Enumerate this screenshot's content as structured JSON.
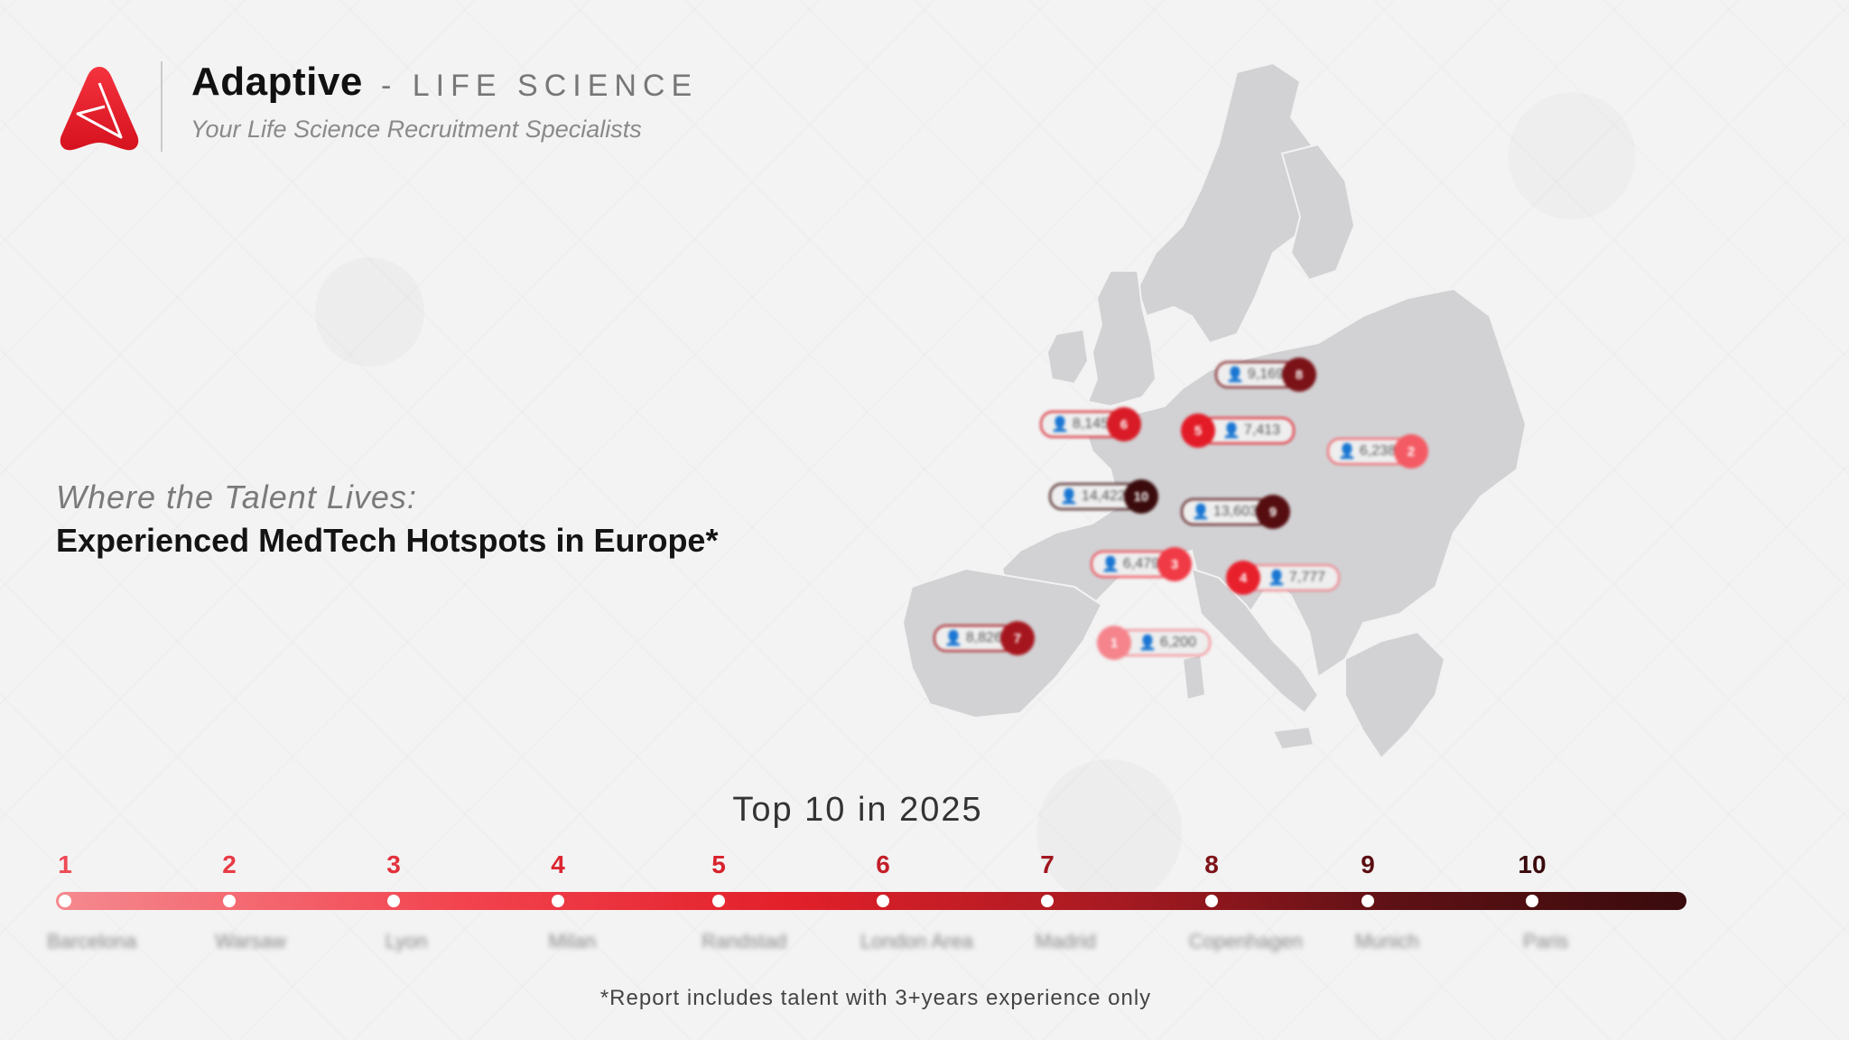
{
  "header": {
    "brand": "Adaptive",
    "brand_suffix": "- LIFE SCIENCE",
    "tagline": "Your Life Science Recruitment Specialists",
    "logo_color": "#e41e2b"
  },
  "hero": {
    "kicker": "Where the Talent Lives:",
    "headline": "Experienced MedTech Hotspots in Europe*"
  },
  "map": {
    "markers": [
      {
        "rank": "1",
        "count": "6,200",
        "city": "Barcelona",
        "color": "#f5848c"
      },
      {
        "rank": "2",
        "count": "6,238",
        "city": "Warsaw",
        "color": "#f45a63"
      },
      {
        "rank": "3",
        "count": "6,479",
        "city": "Lyon",
        "color": "#f03a45"
      },
      {
        "rank": "4",
        "count": "7,777",
        "city": "Milan",
        "color": "#e8202c"
      },
      {
        "rank": "5",
        "count": "7,413",
        "city": "Randstad",
        "color": "#e31b27"
      },
      {
        "rank": "6",
        "count": "8,145",
        "city": "London Area",
        "color": "#d81b26"
      },
      {
        "rank": "7",
        "count": "8,826",
        "city": "Madrid",
        "color": "#a5151d"
      },
      {
        "rank": "8",
        "count": "9,169",
        "city": "Copenhagen",
        "color": "#7a1217"
      },
      {
        "rank": "9",
        "count": "13,603",
        "city": "Munich",
        "color": "#550d10"
      },
      {
        "rank": "10",
        "count": "14,422",
        "city": "Paris",
        "color": "#3a0a0c"
      }
    ]
  },
  "timeline": {
    "title": "Top 10 in 2025",
    "items": [
      {
        "rank": "1",
        "city": "Barcelona",
        "color": "#ee4a55"
      },
      {
        "rank": "2",
        "city": "Warsaw",
        "color": "#e93a45"
      },
      {
        "rank": "3",
        "city": "Lyon",
        "color": "#e2303b"
      },
      {
        "rank": "4",
        "city": "Milan",
        "color": "#dc2631"
      },
      {
        "rank": "5",
        "city": "Randstad",
        "color": "#d8222d"
      },
      {
        "rank": "6",
        "city": "London Area",
        "color": "#c41e28"
      },
      {
        "rank": "7",
        "city": "Madrid",
        "color": "#a1161e"
      },
      {
        "rank": "8",
        "city": "Copenhagen",
        "color": "#7e1218"
      },
      {
        "rank": "9",
        "city": "Munich",
        "color": "#5a0e12"
      },
      {
        "rank": "10",
        "city": "Paris",
        "color": "#3a0a0c"
      }
    ]
  },
  "footnote": "*Report includes talent with 3+years experience only"
}
